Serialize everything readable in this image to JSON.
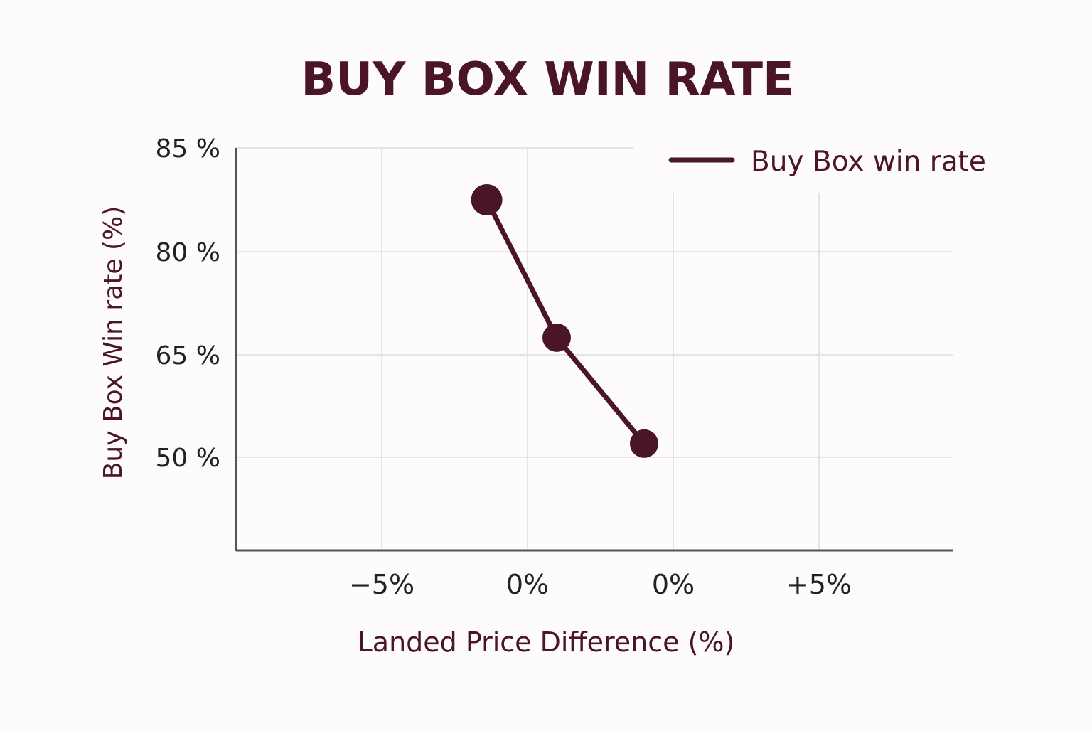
{
  "colors": {
    "background": "#fdfcfa",
    "primary": "#4a1526",
    "axis_text": "#222222",
    "grid": "#e4e4e4",
    "axis_line": "#555555"
  },
  "chart_data": {
    "type": "line",
    "title": "BUY BOX WIN RATE",
    "xlabel": "Landed Price Difference (%)",
    "ylabel": "Buy Box Win rate (%)",
    "grid": true,
    "legend_position": "top-right",
    "x_tick_labels": [
      "−5%",
      "0%",
      "0%",
      "+5%"
    ],
    "y_tick_labels": [
      "85 %",
      "80 %",
      "65 %",
      "50 %"
    ],
    "series": [
      {
        "name": "Buy Box win rate",
        "points": [
          {
            "x": -1.4,
            "y": 82.5
          },
          {
            "x": 1.0,
            "y": 67.5
          },
          {
            "x": 4.0,
            "y": 52.0
          }
        ]
      }
    ]
  }
}
